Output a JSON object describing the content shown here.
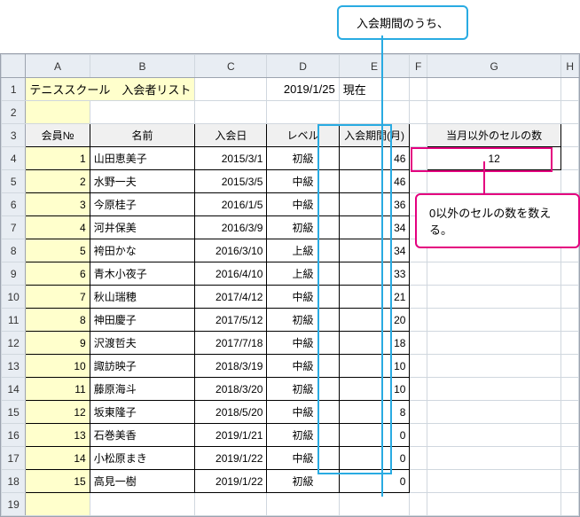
{
  "annotation_top": "入会期間のうち、",
  "annotation_right": "0以外のセルの数を数える。",
  "title": "テニススクール　入会者リスト",
  "date": "2019/1/25",
  "date_label": "現在",
  "columns": [
    "A",
    "B",
    "C",
    "D",
    "E",
    "F",
    "G",
    "H"
  ],
  "headers": {
    "A": "会員№",
    "B": "名前",
    "C": "入会日",
    "D": "レベル",
    "E": "入会期間(月)",
    "G": "当月以外のセルの数"
  },
  "result": "12",
  "rows": [
    {
      "no": "1",
      "name": "山田恵美子",
      "date": "2015/3/1",
      "level": "初級",
      "period": "46"
    },
    {
      "no": "2",
      "name": "水野一夫",
      "date": "2015/3/5",
      "level": "中級",
      "period": "46"
    },
    {
      "no": "3",
      "name": "今原桂子",
      "date": "2016/1/5",
      "level": "中級",
      "period": "36"
    },
    {
      "no": "4",
      "name": "河井保美",
      "date": "2016/3/9",
      "level": "初級",
      "period": "34"
    },
    {
      "no": "5",
      "name": "袴田かな",
      "date": "2016/3/10",
      "level": "上級",
      "period": "34"
    },
    {
      "no": "6",
      "name": "青木小夜子",
      "date": "2016/4/10",
      "level": "上級",
      "period": "33"
    },
    {
      "no": "7",
      "name": "秋山瑞穂",
      "date": "2017/4/12",
      "level": "中級",
      "period": "21"
    },
    {
      "no": "8",
      "name": "神田慶子",
      "date": "2017/5/12",
      "level": "初級",
      "period": "20"
    },
    {
      "no": "9",
      "name": "沢渡哲夫",
      "date": "2017/7/18",
      "level": "中級",
      "period": "18"
    },
    {
      "no": "10",
      "name": "諏訪映子",
      "date": "2018/3/19",
      "level": "中級",
      "period": "10"
    },
    {
      "no": "11",
      "name": "藤原海斗",
      "date": "2018/3/20",
      "level": "初級",
      "period": "10"
    },
    {
      "no": "12",
      "name": "坂東隆子",
      "date": "2018/5/20",
      "level": "中級",
      "period": "8"
    },
    {
      "no": "13",
      "name": "石巻美香",
      "date": "2019/1/21",
      "level": "初級",
      "period": "0"
    },
    {
      "no": "14",
      "name": "小松原まき",
      "date": "2019/1/22",
      "level": "中級",
      "period": "0"
    },
    {
      "no": "15",
      "name": "高見一樹",
      "date": "2019/1/22",
      "level": "初級",
      "period": "0"
    }
  ]
}
